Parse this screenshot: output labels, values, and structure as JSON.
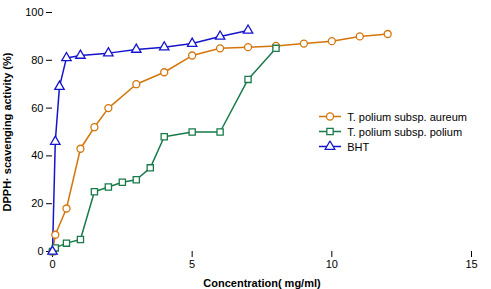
{
  "chart_data": {
    "type": "line",
    "xlabel": "Concentration( mg/ml)",
    "ylabel": "DPPH· scavenging activity (%)",
    "series": [
      {
        "name": "T. polium subsp. aureum",
        "color": "#D4750A",
        "marker": "circle",
        "x": [
          0.0,
          0.1,
          0.5,
          1.0,
          1.5,
          2.0,
          3.0,
          4.0,
          5.0,
          6.0,
          7.0,
          8.0,
          9.0,
          10.0,
          11.0,
          12.0
        ],
        "values": [
          0.0,
          7.0,
          18.0,
          43.0,
          52.0,
          60.0,
          70.0,
          75.0,
          82.0,
          85.0,
          85.5,
          86.0,
          87.0,
          88.0,
          90.0,
          91.0
        ]
      },
      {
        "name": "T. polium subsp. polium",
        "color": "#1A7A4A",
        "marker": "square",
        "x": [
          0.0,
          0.1,
          0.5,
          1.0,
          1.5,
          2.0,
          2.5,
          3.0,
          3.5,
          4.0,
          5.0,
          6.0,
          7.0,
          8.0
        ],
        "values": [
          0.0,
          1.5,
          3.5,
          5.0,
          25.0,
          27.0,
          29.0,
          30.0,
          35.0,
          48.0,
          50.0,
          50.0,
          72.0,
          85.0
        ]
      },
      {
        "name": "BHT",
        "color": "#1414CC",
        "marker": "triangle",
        "x": [
          0.0,
          0.1,
          0.25,
          0.5,
          1.0,
          2.0,
          3.0,
          4.0,
          5.0,
          6.0,
          7.0
        ],
        "values": [
          0.0,
          46.0,
          69.0,
          81.0,
          82.0,
          83.0,
          84.5,
          85.5,
          87.0,
          90.0,
          92.5
        ]
      }
    ],
    "xlim": [
      0,
      15
    ],
    "xticks": [
      0,
      5,
      10,
      15
    ],
    "ylim": [
      0,
      100
    ],
    "yticks": [
      0,
      20,
      40,
      60,
      80,
      100
    ],
    "grid": false,
    "legend": "center right"
  }
}
